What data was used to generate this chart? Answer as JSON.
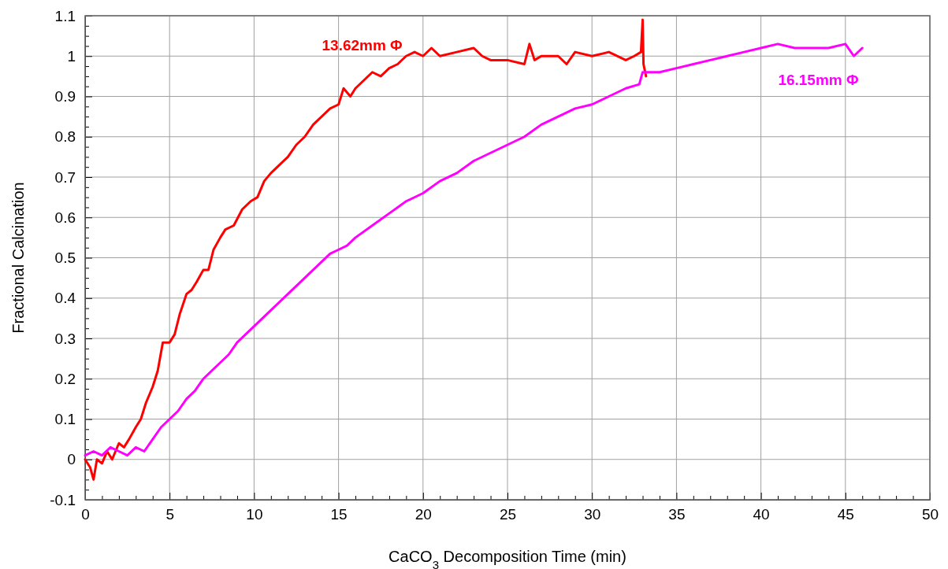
{
  "chart_data": {
    "type": "line",
    "xlabel": "CaCO$_{3}$ Decomposition Time (min)",
    "ylabel": "Fractional Calcination",
    "xlim": [
      0,
      50
    ],
    "ylim": [
      -0.1,
      1.1
    ],
    "grid": true,
    "marker": "none",
    "line_style": "solid",
    "xticks": [
      0,
      {
        "value": 1,
        "label": null
      },
      {
        "value": 2,
        "label": null
      },
      {
        "value": 3,
        "label": null
      },
      {
        "value": 4,
        "label": null
      },
      5,
      {
        "value": 6,
        "label": null
      },
      {
        "value": 7,
        "label": null
      },
      {
        "value": 8,
        "label": null
      },
      {
        "value": 9,
        "label": null
      },
      10,
      {
        "value": 11,
        "label": null
      },
      {
        "value": 12,
        "label": null
      },
      {
        "value": 13,
        "label": null
      },
      {
        "value": 14,
        "label": null
      },
      15,
      {
        "value": 16,
        "label": null
      },
      {
        "value": 17,
        "label": null
      },
      {
        "value": 18,
        "label": null
      },
      {
        "value": 19,
        "label": null
      },
      20,
      {
        "value": 21,
        "label": null
      },
      {
        "value": 22,
        "label": null
      },
      {
        "value": 23,
        "label": null
      },
      {
        "value": 24,
        "label": null
      },
      25,
      {
        "value": 26,
        "label": null
      },
      {
        "value": 27,
        "label": null
      },
      {
        "value": 28,
        "label": null
      },
      {
        "value": 29,
        "label": null
      },
      30,
      {
        "value": 31,
        "label": null
      },
      {
        "value": 32,
        "label": null
      },
      {
        "value": 33,
        "label": null
      },
      {
        "value": 34,
        "label": null
      },
      35,
      {
        "value": 36,
        "label": null
      },
      {
        "value": 37,
        "label": null
      },
      {
        "value": 38,
        "label": null
      },
      {
        "value": 39,
        "label": null
      },
      40,
      {
        "value": 41,
        "label": null
      },
      {
        "value": 42,
        "label": null
      },
      {
        "value": 43,
        "label": null
      },
      {
        "value": 44,
        "label": null
      },
      45,
      {
        "value": 46,
        "label": null
      },
      {
        "value": 47,
        "label": null
      },
      {
        "value": 48,
        "label": null
      },
      {
        "value": 49,
        "label": null
      },
      50
    ],
    "yticks": [
      -0.1,
      {
        "value": -0.075,
        "label": null
      },
      {
        "value": -0.05,
        "label": null
      },
      {
        "value": -0.025,
        "label": null
      },
      0,
      {
        "value": 0.025,
        "label": null
      },
      {
        "value": 0.05,
        "label": null
      },
      {
        "value": 0.075,
        "label": null
      },
      0.1,
      {
        "value": 0.125,
        "label": null
      },
      {
        "value": 0.15,
        "label": null
      },
      {
        "value": 0.175,
        "label": null
      },
      0.2,
      {
        "value": 0.225,
        "label": null
      },
      {
        "value": 0.25,
        "label": null
      },
      {
        "value": 0.275,
        "label": null
      },
      0.3,
      {
        "value": 0.325,
        "label": null
      },
      {
        "value": 0.35,
        "label": null
      },
      {
        "value": 0.375,
        "label": null
      },
      0.4,
      {
        "value": 0.425,
        "label": null
      },
      {
        "value": 0.45,
        "label": null
      },
      {
        "value": 0.475,
        "label": null
      },
      0.5,
      {
        "value": 0.525,
        "label": null
      },
      {
        "value": 0.55,
        "label": null
      },
      {
        "value": 0.575,
        "label": null
      },
      0.6,
      {
        "value": 0.625,
        "label": null
      },
      {
        "value": 0.65,
        "label": null
      },
      {
        "value": 0.675,
        "label": null
      },
      0.7,
      {
        "value": 0.725,
        "label": null
      },
      {
        "value": 0.75,
        "label": null
      },
      {
        "value": 0.775,
        "label": null
      },
      0.8,
      {
        "value": 0.825,
        "label": null
      },
      {
        "value": 0.85,
        "label": null
      },
      {
        "value": 0.875,
        "label": null
      },
      0.9,
      {
        "value": 0.925,
        "label": null
      },
      {
        "value": 0.95,
        "label": null
      },
      {
        "value": 0.975,
        "label": null
      },
      1,
      {
        "value": 1.025,
        "label": null
      },
      {
        "value": 1.05,
        "label": null
      },
      {
        "value": 1.075,
        "label": null
      },
      1.1
    ],
    "series": [
      {
        "color": "#ff0000",
        "x": [
          0,
          0.3,
          0.5,
          0.7,
          1,
          1.3,
          1.6,
          2,
          2.3,
          2.6,
          3,
          3.3,
          3.6,
          4,
          4.3,
          4.6,
          5,
          5.3,
          5.6,
          6,
          6.3,
          6.6,
          7,
          7.3,
          7.6,
          8,
          8.3,
          8.8,
          9.3,
          9.8,
          10.2,
          10.6,
          11,
          11.5,
          12,
          12.5,
          13,
          13.5,
          14,
          14.5,
          15,
          15.3,
          15.7,
          16,
          16.5,
          17,
          17.5,
          18,
          18.5,
          19,
          19.5,
          20,
          20.5,
          21,
          22,
          23,
          23.5,
          24,
          25,
          26,
          26.3,
          26.6,
          27,
          28,
          28.5,
          29,
          30,
          31,
          32,
          32.5,
          32.9,
          33,
          33.05,
          33.2
        ],
        "values": [
          0,
          -0.02,
          -0.05,
          0,
          -0.01,
          0.02,
          0,
          0.04,
          0.03,
          0.05,
          0.08,
          0.1,
          0.14,
          0.18,
          0.22,
          0.29,
          0.29,
          0.31,
          0.36,
          0.41,
          0.42,
          0.44,
          0.47,
          0.47,
          0.52,
          0.55,
          0.57,
          0.58,
          0.62,
          0.64,
          0.65,
          0.69,
          0.71,
          0.73,
          0.75,
          0.78,
          0.8,
          0.83,
          0.85,
          0.87,
          0.88,
          0.92,
          0.9,
          0.92,
          0.94,
          0.96,
          0.95,
          0.97,
          0.98,
          1,
          1.01,
          1,
          1.02,
          1,
          1.01,
          1.02,
          1,
          0.99,
          0.99,
          0.98,
          1.03,
          0.99,
          1,
          1,
          0.98,
          1.01,
          1,
          1.01,
          0.99,
          1,
          1.01,
          1.09,
          0.98,
          0.95
        ]
      },
      {
        "color": "#ff00ff",
        "x": [
          0,
          0.5,
          1,
          1.5,
          2,
          2.5,
          3,
          3.5,
          4,
          4.5,
          5,
          5.5,
          6,
          6.5,
          7,
          7.5,
          8,
          8.5,
          9,
          9.5,
          10,
          10.5,
          11,
          11.5,
          12,
          12.5,
          13,
          13.5,
          14,
          14.5,
          15,
          15.5,
          16,
          17,
          18,
          19,
          20,
          21,
          22,
          23,
          24,
          25,
          26,
          27,
          28,
          29,
          30,
          31,
          32,
          32.8,
          33,
          34,
          35,
          36,
          37,
          38,
          39,
          40,
          41,
          42,
          43,
          44,
          45,
          45.5,
          46
        ],
        "values": [
          0.01,
          0.02,
          0.01,
          0.03,
          0.02,
          0.01,
          0.03,
          0.02,
          0.05,
          0.08,
          0.1,
          0.12,
          0.15,
          0.17,
          0.2,
          0.22,
          0.24,
          0.26,
          0.29,
          0.31,
          0.33,
          0.35,
          0.37,
          0.39,
          0.41,
          0.43,
          0.45,
          0.47,
          0.49,
          0.51,
          0.52,
          0.53,
          0.55,
          0.58,
          0.61,
          0.64,
          0.66,
          0.69,
          0.71,
          0.74,
          0.76,
          0.78,
          0.8,
          0.83,
          0.85,
          0.87,
          0.88,
          0.9,
          0.92,
          0.93,
          0.96,
          0.96,
          0.97,
          0.98,
          0.99,
          1,
          1.01,
          1.02,
          1.03,
          1.02,
          1.02,
          1.02,
          1.03,
          1,
          1.02
        ]
      }
    ],
    "annotations": [
      "13.62mm Φ",
      "16.15mm Φ"
    ]
  }
}
